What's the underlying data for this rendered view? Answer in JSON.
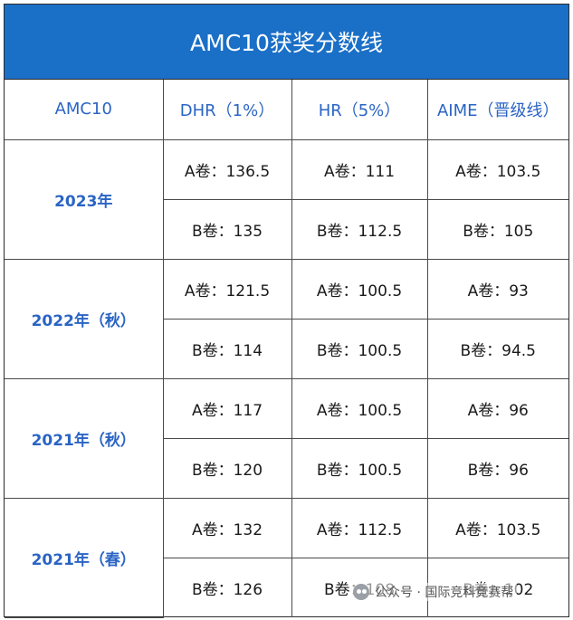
{
  "title": "AMC10获奖分数线",
  "columns": [
    "AMC10",
    "DHR（1%）",
    "HR（5%）",
    "AIME（晋级线）"
  ],
  "rows": [
    {
      "year": "2023年",
      "a": [
        "A卷：136.5",
        "A卷：111",
        "A卷：103.5"
      ],
      "b": [
        "B卷：135",
        "B卷：112.5",
        "B卷：105"
      ]
    },
    {
      "year": "2022年（秋）",
      "a": [
        "A卷：121.5",
        "A卷：100.5",
        "A卷：93"
      ],
      "b": [
        "B卷：114",
        "B卷：100.5",
        "B卷：94.5"
      ]
    },
    {
      "year": "2021年（秋）",
      "a": [
        "A卷：117",
        "A卷：100.5",
        "A卷：96"
      ],
      "b": [
        "B卷：120",
        "B卷：100.5",
        "B卷：96"
      ]
    },
    {
      "year": "2021年（春）",
      "a": [
        "A卷：132",
        "A卷：112.5",
        "A卷：103.5"
      ],
      "b": [
        "B卷：126",
        "B卷：108",
        "B卷：102"
      ]
    }
  ],
  "watermark": "公众号 · 国际竞科竞赛帮",
  "colors": {
    "title_bg": "#1a6fc7",
    "header_text": "#2a64c4",
    "year_text": "#2a64c4"
  }
}
